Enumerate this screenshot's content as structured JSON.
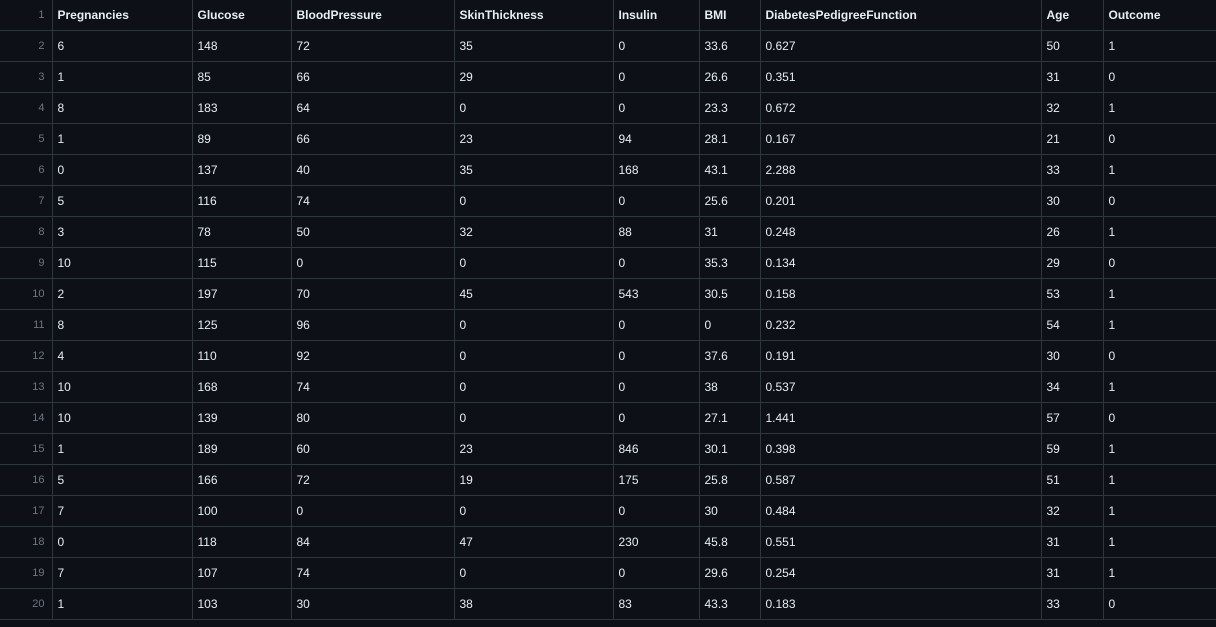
{
  "table": {
    "line_numbers": [
      "1",
      "2",
      "3",
      "4",
      "5",
      "6",
      "7",
      "8",
      "9",
      "10",
      "11",
      "12",
      "13",
      "14",
      "15",
      "16",
      "17",
      "18",
      "19",
      "20"
    ],
    "headers": [
      "Pregnancies",
      "Glucose",
      "BloodPressure",
      "SkinThickness",
      "Insulin",
      "BMI",
      "DiabetesPedigreeFunction",
      "Age",
      "Outcome"
    ],
    "rows": [
      [
        "6",
        "148",
        "72",
        "35",
        "0",
        "33.6",
        "0.627",
        "50",
        "1"
      ],
      [
        "1",
        "85",
        "66",
        "29",
        "0",
        "26.6",
        "0.351",
        "31",
        "0"
      ],
      [
        "8",
        "183",
        "64",
        "0",
        "0",
        "23.3",
        "0.672",
        "32",
        "1"
      ],
      [
        "1",
        "89",
        "66",
        "23",
        "94",
        "28.1",
        "0.167",
        "21",
        "0"
      ],
      [
        "0",
        "137",
        "40",
        "35",
        "168",
        "43.1",
        "2.288",
        "33",
        "1"
      ],
      [
        "5",
        "116",
        "74",
        "0",
        "0",
        "25.6",
        "0.201",
        "30",
        "0"
      ],
      [
        "3",
        "78",
        "50",
        "32",
        "88",
        "31",
        "0.248",
        "26",
        "1"
      ],
      [
        "10",
        "115",
        "0",
        "0",
        "0",
        "35.3",
        "0.134",
        "29",
        "0"
      ],
      [
        "2",
        "197",
        "70",
        "45",
        "543",
        "30.5",
        "0.158",
        "53",
        "1"
      ],
      [
        "8",
        "125",
        "96",
        "0",
        "0",
        "0",
        "0.232",
        "54",
        "1"
      ],
      [
        "4",
        "110",
        "92",
        "0",
        "0",
        "37.6",
        "0.191",
        "30",
        "0"
      ],
      [
        "10",
        "168",
        "74",
        "0",
        "0",
        "38",
        "0.537",
        "34",
        "1"
      ],
      [
        "10",
        "139",
        "80",
        "0",
        "0",
        "27.1",
        "1.441",
        "57",
        "0"
      ],
      [
        "1",
        "189",
        "60",
        "23",
        "846",
        "30.1",
        "0.398",
        "59",
        "1"
      ],
      [
        "5",
        "166",
        "72",
        "19",
        "175",
        "25.8",
        "0.587",
        "51",
        "1"
      ],
      [
        "7",
        "100",
        "0",
        "0",
        "0",
        "30",
        "0.484",
        "32",
        "1"
      ],
      [
        "0",
        "118",
        "84",
        "47",
        "230",
        "45.8",
        "0.551",
        "31",
        "1"
      ],
      [
        "7",
        "107",
        "74",
        "0",
        "0",
        "29.6",
        "0.254",
        "31",
        "1"
      ],
      [
        "1",
        "103",
        "30",
        "38",
        "83",
        "43.3",
        "0.183",
        "33",
        "0"
      ]
    ]
  }
}
